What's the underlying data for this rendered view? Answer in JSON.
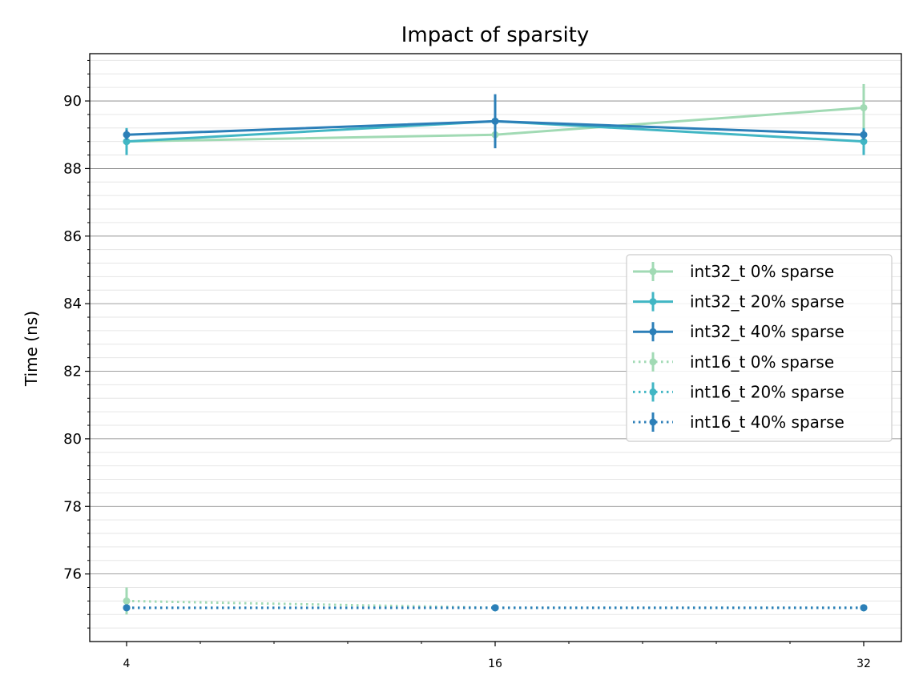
{
  "chart_data": {
    "type": "line",
    "title": "Impact of sparsity",
    "xlabel": "",
    "ylabel": "Time (ns)",
    "x": [
      4,
      16,
      32
    ],
    "x_tick_labels": [
      "4",
      "16",
      "32"
    ],
    "ylim": [
      74.0,
      91.4
    ],
    "y_ticks": [
      76,
      78,
      80,
      82,
      84,
      86,
      88,
      90
    ],
    "y_tick_labels": [
      "76",
      "78",
      "80",
      "82",
      "84",
      "86",
      "88",
      "90"
    ],
    "grid": true,
    "legend_position": "center-right",
    "series": [
      {
        "name": "int32_t 0% sparse",
        "color": "#a1dab4",
        "style": "solid",
        "values": [
          88.8,
          89.0,
          89.8
        ],
        "errors": [
          0.0,
          0.0,
          0.7
        ]
      },
      {
        "name": "int32_t 20% sparse",
        "color": "#41b6c4",
        "style": "solid",
        "values": [
          88.8,
          89.4,
          88.8
        ],
        "errors": [
          0.4,
          0.0,
          0.4
        ]
      },
      {
        "name": "int32_t 40% sparse",
        "color": "#2c7fb8",
        "style": "solid",
        "values": [
          89.0,
          89.4,
          89.0
        ],
        "errors": [
          0.15,
          0.8,
          0.15
        ]
      },
      {
        "name": "int16_t 0% sparse",
        "color": "#a1dab4",
        "style": "dotted",
        "values": [
          75.2,
          75.0,
          75.0
        ],
        "errors": [
          0.4,
          0.0,
          0.0
        ]
      },
      {
        "name": "int16_t 20% sparse",
        "color": "#41b6c4",
        "style": "dotted",
        "values": [
          75.0,
          75.0,
          75.0
        ],
        "errors": [
          0.1,
          0.0,
          0.0
        ]
      },
      {
        "name": "int16_t 40% sparse",
        "color": "#2c7fb8",
        "style": "dotted",
        "values": [
          75.0,
          75.0,
          75.0
        ],
        "errors": [
          0.1,
          0.0,
          0.0
        ]
      }
    ]
  }
}
